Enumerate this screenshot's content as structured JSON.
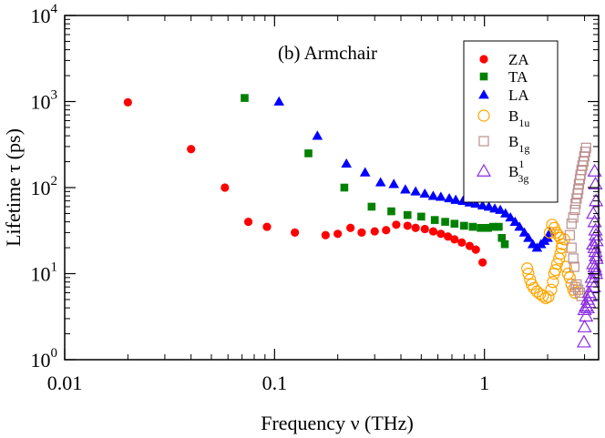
{
  "chart_data": {
    "type": "scatter",
    "title": "(b) Armchair",
    "xlabel": "Frequency ν  (THz)",
    "ylabel": "Lifetime τ (ps)",
    "xscale": "log",
    "yscale": "log",
    "xlim": [
      0.01,
      3.5
    ],
    "ylim": [
      1,
      10000
    ],
    "grid": false,
    "legend_position": "top-right",
    "x_ticks": [
      {
        "value": 0.01,
        "label": "0.01"
      },
      {
        "value": 0.1,
        "label": "0.1"
      },
      {
        "value": 1,
        "label": "1"
      }
    ],
    "y_ticks": [
      {
        "value": 1,
        "base": "10",
        "exp": "0"
      },
      {
        "value": 10,
        "base": "10",
        "exp": "1"
      },
      {
        "value": 100,
        "base": "10",
        "exp": "2"
      },
      {
        "value": 1000,
        "base": "10",
        "exp": "3"
      },
      {
        "value": 10000,
        "base": "10",
        "exp": "4"
      }
    ],
    "series": [
      {
        "name": "ZA",
        "main": "ZA",
        "sub": "",
        "sup": "",
        "marker": "circle-filled",
        "color": "#ff0000",
        "points": [
          [
            0.02,
            980
          ],
          [
            0.04,
            280
          ],
          [
            0.058,
            100
          ],
          [
            0.075,
            40
          ],
          [
            0.092,
            35
          ],
          [
            0.125,
            30
          ],
          [
            0.175,
            28
          ],
          [
            0.2,
            29
          ],
          [
            0.23,
            34
          ],
          [
            0.26,
            30
          ],
          [
            0.3,
            31
          ],
          [
            0.34,
            32
          ],
          [
            0.38,
            37
          ],
          [
            0.43,
            36
          ],
          [
            0.47,
            34
          ],
          [
            0.52,
            33
          ],
          [
            0.57,
            31
          ],
          [
            0.62,
            29
          ],
          [
            0.67,
            27
          ],
          [
            0.72,
            25
          ],
          [
            0.78,
            23
          ],
          [
            0.85,
            21
          ],
          [
            0.91,
            19
          ],
          [
            0.98,
            13.5
          ]
        ]
      },
      {
        "name": "TA",
        "main": "TA",
        "sub": "",
        "sup": "",
        "marker": "square-filled",
        "color": "#008000",
        "points": [
          [
            0.072,
            1100
          ],
          [
            0.145,
            250
          ],
          [
            0.215,
            100
          ],
          [
            0.29,
            60
          ],
          [
            0.36,
            53
          ],
          [
            0.43,
            48
          ],
          [
            0.5,
            46
          ],
          [
            0.58,
            42
          ],
          [
            0.65,
            40
          ],
          [
            0.72,
            38
          ],
          [
            0.8,
            36
          ],
          [
            0.88,
            35
          ],
          [
            0.96,
            34
          ],
          [
            1.04,
            34
          ],
          [
            1.1,
            35
          ],
          [
            1.17,
            35
          ],
          [
            1.21,
            26
          ],
          [
            1.25,
            22
          ]
        ]
      },
      {
        "name": "LA",
        "main": "LA",
        "sub": "",
        "sup": "",
        "marker": "triangle-filled",
        "color": "#0000ff",
        "points": [
          [
            0.105,
            1000
          ],
          [
            0.16,
            400
          ],
          [
            0.22,
            190
          ],
          [
            0.27,
            150
          ],
          [
            0.32,
            115
          ],
          [
            0.37,
            110
          ],
          [
            0.42,
            95
          ],
          [
            0.47,
            90
          ],
          [
            0.52,
            85
          ],
          [
            0.57,
            80
          ],
          [
            0.62,
            78
          ],
          [
            0.68,
            75
          ],
          [
            0.73,
            72
          ],
          [
            0.79,
            70
          ],
          [
            0.85,
            67
          ],
          [
            0.91,
            65
          ],
          [
            0.98,
            62
          ],
          [
            1.05,
            60
          ],
          [
            1.12,
            57
          ],
          [
            1.19,
            55
          ],
          [
            1.26,
            50
          ],
          [
            1.33,
            45
          ],
          [
            1.4,
            40
          ],
          [
            1.47,
            35
          ],
          [
            1.55,
            30
          ],
          [
            1.62,
            26
          ],
          [
            1.7,
            22
          ],
          [
            1.78,
            20
          ],
          [
            1.86,
            22
          ],
          [
            1.93,
            24
          ],
          [
            2.0,
            26
          ],
          [
            2.05,
            30
          ]
        ]
      },
      {
        "name": "B1u",
        "main": "B",
        "sub": "1u",
        "sup": "",
        "marker": "circle-open",
        "color": "#ffa500",
        "points": [
          [
            1.6,
            11.5
          ],
          [
            1.62,
            10
          ],
          [
            1.65,
            8.5
          ],
          [
            1.68,
            7.5
          ],
          [
            1.72,
            6.8
          ],
          [
            1.78,
            6.2
          ],
          [
            1.84,
            5.8
          ],
          [
            1.9,
            5.5
          ],
          [
            1.96,
            5.2
          ],
          [
            2.02,
            5.4
          ],
          [
            2.08,
            6.5
          ],
          [
            2.12,
            8
          ],
          [
            2.15,
            10
          ],
          [
            2.18,
            11
          ],
          [
            2.22,
            13
          ],
          [
            2.27,
            15
          ],
          [
            2.3,
            17
          ],
          [
            2.33,
            20
          ],
          [
            2.05,
            30
          ],
          [
            2.1,
            37
          ],
          [
            2.15,
            34
          ],
          [
            2.2,
            30
          ],
          [
            2.25,
            28
          ],
          [
            2.3,
            26
          ],
          [
            2.35,
            22
          ],
          [
            2.4,
            25
          ],
          [
            2.45,
            12
          ],
          [
            2.5,
            10
          ],
          [
            2.55,
            9
          ],
          [
            2.6,
            7.5
          ],
          [
            2.65,
            6.5
          ],
          [
            2.7,
            6
          ]
        ]
      },
      {
        "name": "B1g",
        "main": "B",
        "sub": "1g",
        "sup": "",
        "marker": "square-open",
        "color": "#bc8f8f",
        "points": [
          [
            2.55,
            28
          ],
          [
            2.6,
            38
          ],
          [
            2.65,
            45
          ],
          [
            2.7,
            55
          ],
          [
            2.72,
            65
          ],
          [
            2.75,
            75
          ],
          [
            2.78,
            85
          ],
          [
            2.8,
            95
          ],
          [
            2.82,
            110
          ],
          [
            2.85,
            125
          ],
          [
            2.87,
            140
          ],
          [
            2.9,
            160
          ],
          [
            2.93,
            180
          ],
          [
            2.96,
            200
          ],
          [
            2.99,
            230
          ],
          [
            3.02,
            260
          ],
          [
            3.05,
            290
          ],
          [
            2.7,
            7
          ],
          [
            2.75,
            7.5
          ],
          [
            2.8,
            6.5
          ],
          [
            2.85,
            6
          ],
          [
            2.9,
            5.5
          ],
          [
            2.6,
            20
          ],
          [
            2.65,
            15
          ],
          [
            2.68,
            12
          ]
        ]
      },
      {
        "name": "B3g1",
        "main": "B",
        "sub": "3g",
        "sup": "1",
        "marker": "triangle-open",
        "color": "#8a2be2",
        "points": [
          [
            3.35,
            155
          ],
          [
            3.38,
            110
          ],
          [
            3.4,
            70
          ],
          [
            3.3,
            50
          ],
          [
            3.35,
            40
          ],
          [
            3.38,
            32
          ],
          [
            3.4,
            28
          ],
          [
            3.42,
            24
          ],
          [
            3.3,
            22
          ],
          [
            3.35,
            20
          ],
          [
            3.38,
            18
          ],
          [
            3.4,
            16
          ],
          [
            3.42,
            15
          ],
          [
            3.3,
            13
          ],
          [
            3.35,
            12
          ],
          [
            3.38,
            11
          ],
          [
            3.4,
            10
          ],
          [
            3.25,
            9
          ],
          [
            3.28,
            8
          ],
          [
            3.32,
            7
          ],
          [
            3.15,
            6
          ],
          [
            3.2,
            5.5
          ],
          [
            3.1,
            5
          ],
          [
            3.15,
            4.6
          ],
          [
            3.05,
            4.2
          ],
          [
            3.1,
            4
          ],
          [
            3.0,
            3.8
          ],
          [
            3.05,
            3.2
          ],
          [
            3.0,
            2.4
          ],
          [
            2.98,
            1.6
          ]
        ]
      }
    ]
  }
}
